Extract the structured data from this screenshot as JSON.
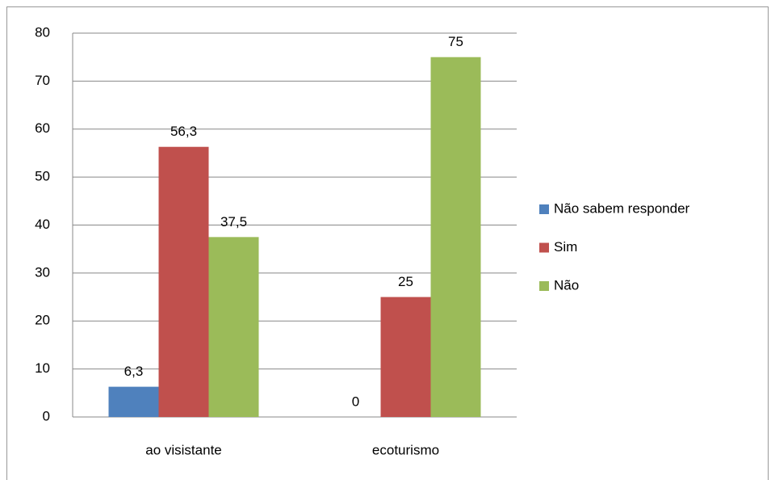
{
  "chart_data": {
    "type": "bar",
    "categories": [
      "ao visistante",
      "ecoturismo"
    ],
    "series": [
      {
        "name": "Não sabem responder",
        "color": "#4f81bd",
        "values": [
          6.3,
          0
        ],
        "value_labels": [
          "6,3",
          "0"
        ]
      },
      {
        "name": "Sim",
        "color": "#c0504d",
        "values": [
          56.3,
          25
        ],
        "value_labels": [
          "56,3",
          "25"
        ]
      },
      {
        "name": "Não",
        "color": "#9bbb59",
        "values": [
          37.5,
          75
        ],
        "value_labels": [
          "37,5",
          "75"
        ]
      }
    ],
    "ylim": [
      0,
      80
    ],
    "yticks": [
      0,
      10,
      20,
      30,
      40,
      50,
      60,
      70,
      80
    ],
    "grid": true,
    "legend": "right"
  }
}
